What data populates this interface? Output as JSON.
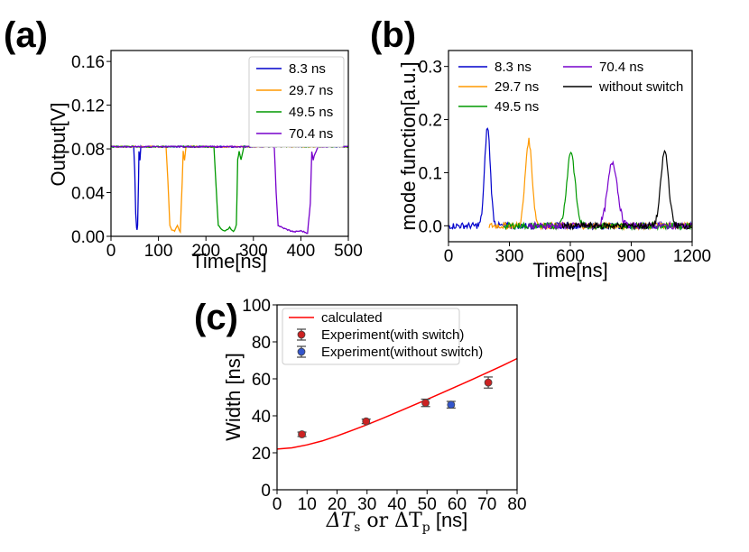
{
  "chart_data": [
    {
      "id": "a",
      "panel_label": "(a)",
      "type": "line",
      "xlabel": "Time[ns]",
      "ylabel": "Output[V]",
      "xlim": [
        0,
        500
      ],
      "ylim": [
        0,
        0.17
      ],
      "x_ticks": [
        "0",
        "100",
        "200",
        "300",
        "400",
        "500"
      ],
      "y_ticks": [
        "0.00",
        "0.04",
        "0.08",
        "0.12",
        "0.16"
      ],
      "legend_position": "top-right",
      "series": [
        {
          "name": "8.3 ns",
          "color": "#0000cc",
          "x": [
            0,
            48,
            50,
            52,
            54,
            55,
            56,
            58,
            59,
            61,
            63,
            66,
            500
          ],
          "y": [
            0.082,
            0.082,
            0.06,
            0.02,
            0.008,
            0.006,
            0.01,
            0.05,
            0.078,
            0.07,
            0.082,
            0.082,
            0.082
          ]
        },
        {
          "name": "29.7 ns",
          "color": "#ff9900",
          "x": [
            0,
            116,
            120,
            124,
            128,
            134,
            140,
            146,
            150,
            152,
            155,
            158,
            162,
            500
          ],
          "y": [
            0.082,
            0.082,
            0.05,
            0.01,
            0.006,
            0.005,
            0.01,
            0.004,
            0.05,
            0.078,
            0.07,
            0.082,
            0.082,
            0.082
          ]
        },
        {
          "name": "49.5 ns",
          "color": "#009900",
          "x": [
            0,
            217,
            222,
            226,
            232,
            240,
            250,
            258,
            264,
            267,
            270,
            274,
            280,
            500
          ],
          "y": [
            0.082,
            0.082,
            0.04,
            0.01,
            0.007,
            0.005,
            0.008,
            0.004,
            0.01,
            0.07,
            0.078,
            0.07,
            0.082,
            0.082
          ]
        },
        {
          "name": "70.4 ns",
          "color": "#7700cc",
          "x": [
            0,
            344,
            348,
            352,
            360,
            372,
            386,
            400,
            414,
            420,
            423,
            426,
            430,
            436,
            500
          ],
          "y": [
            0.082,
            0.082,
            0.04,
            0.01,
            0.008,
            0.006,
            0.004,
            0.005,
            0.003,
            0.03,
            0.078,
            0.07,
            0.076,
            0.082,
            0.082
          ]
        }
      ]
    },
    {
      "id": "b",
      "panel_label": "(b)",
      "type": "line",
      "xlabel": "Time[ns]",
      "ylabel": "mode function[a.u.]",
      "xlim": [
        0,
        1200
      ],
      "ylim": [
        -0.03,
        0.33
      ],
      "x_ticks": [
        "0",
        "300",
        "600",
        "900",
        "1200"
      ],
      "y_ticks": [
        "0.0",
        "0.1",
        "0.2",
        "0.3"
      ],
      "legend_position": "top",
      "series": [
        {
          "name": "8.3 ns",
          "color": "#0000cc",
          "x_start": 0,
          "x_end": 1200,
          "peak_center": 192,
          "peak_height": 0.185,
          "peak_width": 14
        },
        {
          "name": "29.7 ns",
          "color": "#ff9900",
          "x_start": 200,
          "x_end": 1200,
          "peak_center": 395,
          "peak_height": 0.16,
          "peak_width": 17
        },
        {
          "name": "49.5 ns",
          "color": "#009900",
          "x_start": 270,
          "x_end": 1200,
          "peak_center": 603,
          "peak_height": 0.14,
          "peak_width": 20
        },
        {
          "name": "70.4 ns",
          "color": "#7700cc",
          "x_start": 390,
          "x_end": 1200,
          "peak_center": 808,
          "peak_height": 0.12,
          "peak_width": 24
        },
        {
          "name": "without switch",
          "color": "#000000",
          "x_start": 560,
          "x_end": 1200,
          "peak_center": 1065,
          "peak_height": 0.14,
          "peak_width": 19
        }
      ]
    },
    {
      "id": "c",
      "panel_label": "(c)",
      "type": "scatter",
      "xlabel_prefix": "ΔT",
      "xlabel_sub1": "s",
      "xlabel_mid": " or ΔT",
      "xlabel_sub2": "p",
      "xlabel_suffix": " [ns]",
      "ylabel": "Width [ns]",
      "xlim": [
        0,
        80
      ],
      "ylim": [
        0,
        100
      ],
      "x_ticks": [
        "0",
        "10",
        "20",
        "30",
        "40",
        "50",
        "60",
        "70",
        "80"
      ],
      "y_ticks": [
        "0",
        "20",
        "40",
        "60",
        "80",
        "100"
      ],
      "legend_position": "top-left",
      "calculated": {
        "name": "calculated",
        "color": "#ff0000",
        "x": [
          0,
          5,
          10,
          15,
          20,
          25,
          30,
          35,
          40,
          45,
          50,
          55,
          60,
          65,
          70,
          75,
          80
        ],
        "y": [
          22,
          22.7,
          24.3,
          26.4,
          29.1,
          32.1,
          35.2,
          38.5,
          41.9,
          45.4,
          48.9,
          52.4,
          56.0,
          59.6,
          63.3,
          67.0,
          71.0
        ]
      },
      "with_switch": {
        "name": "Experiment(with switch)",
        "color": "#cc2222",
        "x": [
          8.3,
          29.7,
          49.5,
          70.4
        ],
        "y": [
          30,
          37,
          47,
          58
        ],
        "err": [
          1.2,
          1.2,
          2.0,
          3.0
        ]
      },
      "without_switch": {
        "name": "Experiment(without switch)",
        "color": "#3355cc",
        "x": [
          58
        ],
        "y": [
          46
        ],
        "err": [
          1.8
        ]
      }
    }
  ]
}
